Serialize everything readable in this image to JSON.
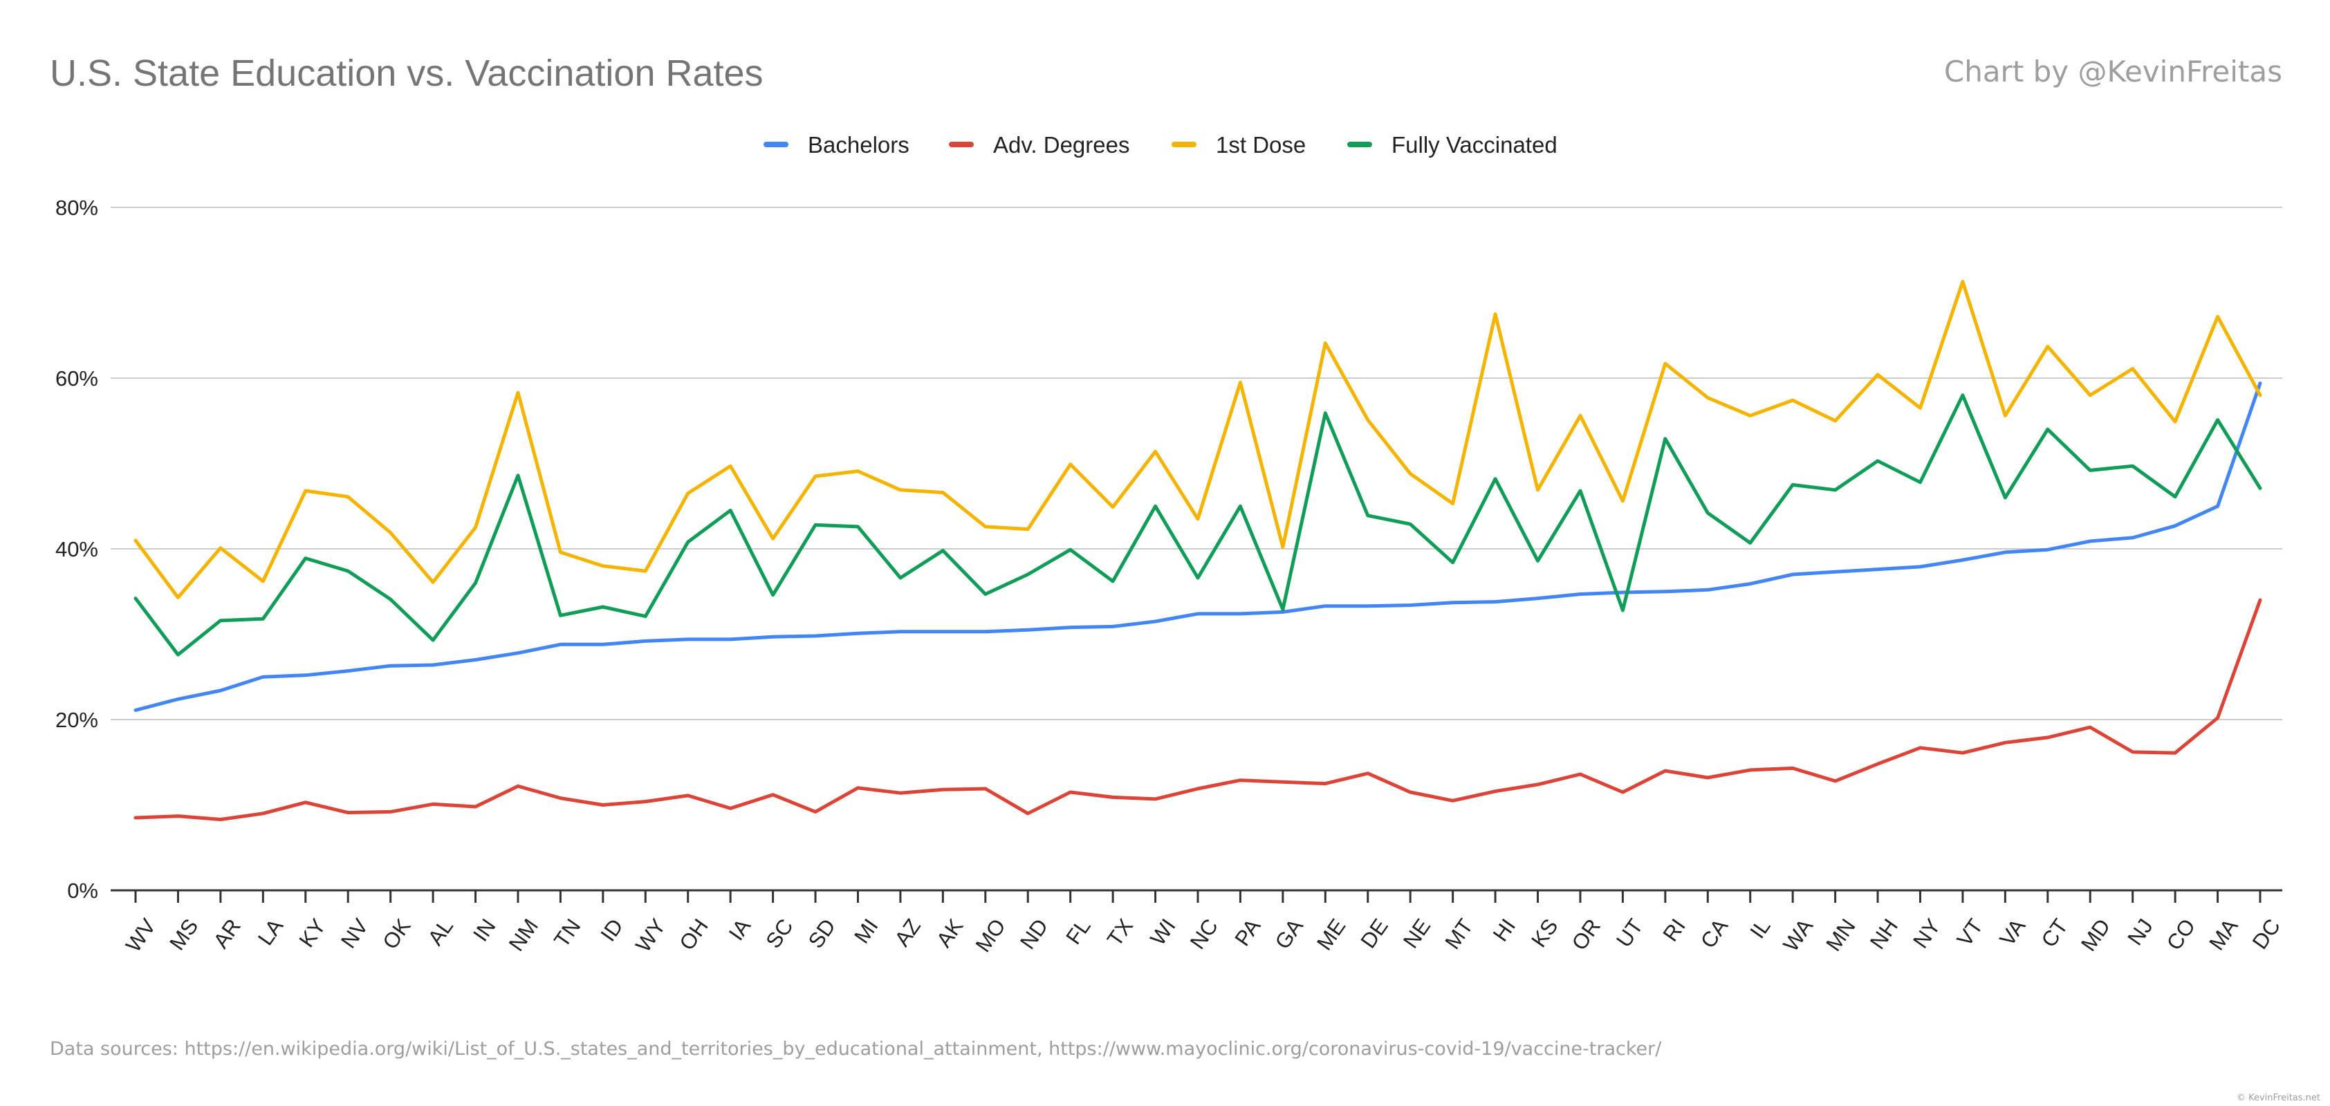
{
  "title": "U.S. State Education vs. Vaccination Rates",
  "credit": "Chart by @KevinFreitas",
  "source_note": "Data sources: https://en.wikipedia.org/wiki/List_of_U.S._states_and_territories_by_educational_attainment, https://www.mayoclinic.org/coronavirus-covid-19/vaccine-tracker/",
  "watermark": "© KevinFreitas.net",
  "chart_data": {
    "type": "line",
    "title": "U.S. State Education vs. Vaccination Rates",
    "xlabel": "",
    "ylabel": "",
    "ylim": [
      0,
      80
    ],
    "yticks": [
      0,
      20,
      40,
      60,
      80
    ],
    "ytick_labels": [
      "0%",
      "20%",
      "40%",
      "60%",
      "80%"
    ],
    "grid": true,
    "legend_position": "top",
    "categories": [
      "WV",
      "MS",
      "AR",
      "LA",
      "KY",
      "NV",
      "OK",
      "AL",
      "IN",
      "NM",
      "TN",
      "ID",
      "WY",
      "OH",
      "IA",
      "SC",
      "SD",
      "MI",
      "AZ",
      "AK",
      "MO",
      "ND",
      "FL",
      "TX",
      "WI",
      "NC",
      "PA",
      "GA",
      "ME",
      "DE",
      "NE",
      "MT",
      "HI",
      "KS",
      "OR",
      "UT",
      "RI",
      "CA",
      "IL",
      "WA",
      "MN",
      "NH",
      "NY",
      "VT",
      "VA",
      "CT",
      "MD",
      "NJ",
      "CO",
      "MA",
      "DC"
    ],
    "series": [
      {
        "name": "Bachelors",
        "color": "#4285f4",
        "values": [
          21.1,
          22.4,
          23.4,
          25.0,
          25.2,
          25.7,
          26.3,
          26.4,
          27.0,
          27.8,
          28.8,
          28.8,
          29.2,
          29.4,
          29.4,
          29.7,
          29.8,
          30.1,
          30.3,
          30.3,
          30.3,
          30.5,
          30.8,
          30.9,
          31.5,
          32.4,
          32.4,
          32.6,
          33.3,
          33.3,
          33.4,
          33.7,
          33.8,
          34.2,
          34.7,
          34.9,
          35.0,
          35.2,
          35.9,
          37.0,
          37.3,
          37.6,
          37.9,
          38.7,
          39.6,
          39.9,
          40.9,
          41.3,
          42.7,
          45.0,
          59.4
        ]
      },
      {
        "name": "Adv. Degrees",
        "color": "#db4437",
        "values": [
          8.5,
          8.7,
          8.3,
          9.0,
          10.3,
          9.1,
          9.2,
          10.1,
          9.8,
          12.2,
          10.8,
          10.0,
          10.4,
          11.1,
          9.6,
          11.2,
          9.2,
          12.0,
          11.4,
          11.8,
          11.9,
          9.0,
          11.5,
          10.9,
          10.7,
          11.9,
          12.9,
          12.7,
          12.5,
          13.7,
          11.5,
          10.5,
          11.6,
          12.4,
          13.6,
          11.5,
          14.0,
          13.2,
          14.1,
          14.3,
          12.8,
          14.8,
          16.7,
          16.1,
          17.3,
          17.9,
          19.1,
          16.2,
          16.1,
          20.2,
          34.0
        ]
      },
      {
        "name": "1st Dose",
        "color": "#f4b400",
        "values": [
          41.0,
          34.3,
          40.1,
          36.2,
          46.8,
          46.1,
          41.9,
          36.1,
          42.5,
          58.3,
          39.6,
          38.0,
          37.4,
          46.5,
          49.7,
          41.2,
          48.5,
          49.1,
          46.9,
          46.6,
          42.6,
          42.3,
          49.9,
          44.9,
          51.4,
          43.5,
          59.5,
          40.2,
          64.1,
          55.1,
          48.8,
          45.3,
          67.5,
          46.9,
          55.6,
          45.6,
          61.7,
          57.7,
          55.6,
          57.4,
          55.0,
          60.4,
          56.5,
          71.3,
          55.6,
          63.7,
          58.0,
          61.1,
          54.9,
          67.2,
          58.0
        ]
      },
      {
        "name": "Fully Vaccinated",
        "color": "#0f9d58",
        "values": [
          34.2,
          27.6,
          31.6,
          31.8,
          38.9,
          37.4,
          34.1,
          29.3,
          36.0,
          48.6,
          32.2,
          33.2,
          32.1,
          40.8,
          44.5,
          34.6,
          42.8,
          42.6,
          36.6,
          39.8,
          34.7,
          37.0,
          39.9,
          36.2,
          45.0,
          36.6,
          45.0,
          32.9,
          55.9,
          43.9,
          42.9,
          38.4,
          48.2,
          38.6,
          46.8,
          32.8,
          52.9,
          44.2,
          40.7,
          47.5,
          46.9,
          50.3,
          47.8,
          58.0,
          46.0,
          54.0,
          49.2,
          49.7,
          46.1,
          55.1,
          47.1
        ]
      }
    ]
  }
}
